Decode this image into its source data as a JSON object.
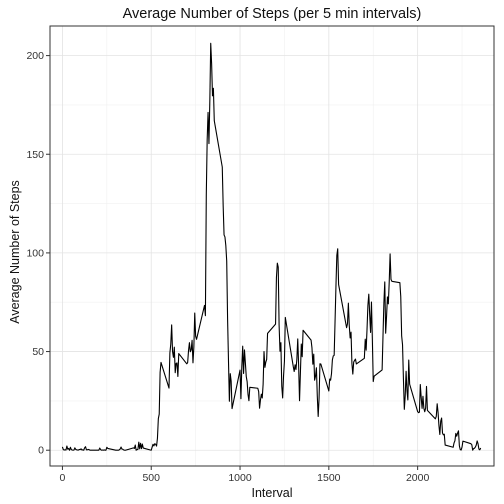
{
  "chart_data": {
    "type": "line",
    "title": "Average Number of Steps (per 5 min intervals)",
    "xlabel": "Interval",
    "ylabel": "Average Number of Steps",
    "xlim": [
      -70,
      2430
    ],
    "ylim": [
      -8,
      215
    ],
    "xticks": [
      0,
      500,
      1000,
      1500,
      2000
    ],
    "yticks": [
      0,
      50,
      100,
      150,
      200
    ],
    "x_minor_ticks": [
      250,
      750,
      1250,
      1750,
      2250
    ],
    "y_minor_ticks": [
      25,
      75,
      125,
      175
    ],
    "grid": true,
    "line_color": "#000000",
    "series": [
      {
        "points": [
          [
            0,
            1.7
          ],
          [
            5,
            0.3
          ],
          [
            10,
            0.1
          ],
          [
            15,
            0.2
          ],
          [
            20,
            0.1
          ],
          [
            25,
            2.1
          ],
          [
            30,
            0.5
          ],
          [
            35,
            0.9
          ],
          [
            40,
            0
          ],
          [
            45,
            1.5
          ],
          [
            50,
            0.3
          ],
          [
            55,
            0.1
          ],
          [
            60,
            0
          ],
          [
            65,
            0.1
          ],
          [
            70,
            1.2
          ],
          [
            75,
            0.4
          ],
          [
            80,
            0.2
          ],
          [
            85,
            0.1
          ],
          [
            90,
            0.1
          ],
          [
            95,
            0.4
          ],
          [
            100,
            0.3
          ],
          [
            105,
            0.7
          ],
          [
            110,
            0.1
          ],
          [
            115,
            0.2
          ],
          [
            120,
            0
          ],
          [
            125,
            1.2
          ],
          [
            130,
            1.8
          ],
          [
            135,
            0.2
          ],
          [
            140,
            0.2
          ],
          [
            145,
            0.4
          ],
          [
            150,
            0.3
          ],
          [
            155,
            0
          ],
          [
            200,
            0
          ],
          [
            205,
            0
          ],
          [
            210,
            1.1
          ],
          [
            215,
            0.3
          ],
          [
            220,
            0
          ],
          [
            225,
            0.1
          ],
          [
            230,
            0
          ],
          [
            235,
            0.2
          ],
          [
            240,
            0
          ],
          [
            245,
            0
          ],
          [
            250,
            1.5
          ],
          [
            255,
            0.9
          ],
          [
            300,
            0
          ],
          [
            305,
            0
          ],
          [
            310,
            0
          ],
          [
            315,
            0
          ],
          [
            320,
            0.2
          ],
          [
            325,
            0.6
          ],
          [
            330,
            1.6
          ],
          [
            335,
            0.6
          ],
          [
            340,
            0.5
          ],
          [
            345,
            0.1
          ],
          [
            350,
            0
          ],
          [
            355,
            0
          ],
          [
            400,
            1.2
          ],
          [
            405,
            0.9
          ],
          [
            410,
            2.6
          ],
          [
            415,
            0
          ],
          [
            420,
            0.3
          ],
          [
            425,
            0.4
          ],
          [
            430,
            4.1
          ],
          [
            435,
            0.7
          ],
          [
            440,
            3.5
          ],
          [
            445,
            0.8
          ],
          [
            450,
            3.1
          ],
          [
            455,
            1.1
          ],
          [
            500,
            0
          ],
          [
            505,
            1.5
          ],
          [
            510,
            3
          ],
          [
            515,
            2.2
          ],
          [
            520,
            3.3
          ],
          [
            525,
            3
          ],
          [
            530,
            2.1
          ],
          [
            535,
            6.1
          ],
          [
            540,
            16
          ],
          [
            545,
            18.3
          ],
          [
            550,
            39.5
          ],
          [
            555,
            44.5
          ],
          [
            600,
            31.5
          ],
          [
            605,
            49.3
          ],
          [
            610,
            53.8
          ],
          [
            615,
            63.5
          ],
          [
            620,
            50
          ],
          [
            625,
            47.1
          ],
          [
            630,
            52.2
          ],
          [
            635,
            39.3
          ],
          [
            640,
            44
          ],
          [
            645,
            44.2
          ],
          [
            650,
            37.4
          ],
          [
            655,
            49.0
          ],
          [
            700,
            43.8
          ],
          [
            705,
            44.4
          ],
          [
            710,
            50.5
          ],
          [
            715,
            54.5
          ],
          [
            720,
            49.9
          ],
          [
            725,
            50.9
          ],
          [
            730,
            55.7
          ],
          [
            735,
            44.3
          ],
          [
            740,
            52.3
          ],
          [
            745,
            69.5
          ],
          [
            750,
            57.8
          ],
          [
            755,
            56.2
          ],
          [
            800,
            73.4
          ],
          [
            805,
            68.2
          ],
          [
            810,
            129.4
          ],
          [
            815,
            157.5
          ],
          [
            820,
            171.2
          ],
          [
            825,
            155.4
          ],
          [
            830,
            177.3
          ],
          [
            835,
            206.2
          ],
          [
            840,
            195.9
          ],
          [
            845,
            179.6
          ],
          [
            850,
            183.4
          ],
          [
            855,
            167.0
          ],
          [
            900,
            143.5
          ],
          [
            905,
            124.0
          ],
          [
            910,
            109.1
          ],
          [
            915,
            108.1
          ],
          [
            920,
            103.7
          ],
          [
            925,
            95.9
          ],
          [
            930,
            66.2
          ],
          [
            935,
            45.2
          ],
          [
            940,
            24.8
          ],
          [
            945,
            38.8
          ],
          [
            950,
            35.0
          ],
          [
            955,
            21.1
          ],
          [
            1000,
            40.6
          ],
          [
            1005,
            26.1
          ],
          [
            1010,
            42.4
          ],
          [
            1015,
            52.7
          ],
          [
            1020,
            38.9
          ],
          [
            1025,
            50.8
          ],
          [
            1030,
            44.3
          ],
          [
            1035,
            37.4
          ],
          [
            1040,
            34.7
          ],
          [
            1045,
            28.3
          ],
          [
            1050,
            25.1
          ],
          [
            1055,
            31.9
          ],
          [
            1100,
            31.4
          ],
          [
            1105,
            29.7
          ],
          [
            1110,
            21.3
          ],
          [
            1115,
            25.5
          ],
          [
            1120,
            28.4
          ],
          [
            1125,
            26.5
          ],
          [
            1130,
            33.4
          ],
          [
            1135,
            50.0
          ],
          [
            1140,
            42.0
          ],
          [
            1145,
            44.6
          ],
          [
            1150,
            46.0
          ],
          [
            1155,
            59.2
          ],
          [
            1200,
            63.9
          ],
          [
            1205,
            87.6
          ],
          [
            1210,
            94.8
          ],
          [
            1215,
            92.8
          ],
          [
            1220,
            63.4
          ],
          [
            1225,
            50.2
          ],
          [
            1230,
            54.5
          ],
          [
            1235,
            32.4
          ],
          [
            1240,
            26.5
          ],
          [
            1245,
            37.7
          ],
          [
            1250,
            45.1
          ],
          [
            1255,
            67.3
          ],
          [
            1300,
            42.3
          ],
          [
            1305,
            39.9
          ],
          [
            1310,
            43.3
          ],
          [
            1315,
            40.9
          ],
          [
            1320,
            46.2
          ],
          [
            1325,
            56.4
          ],
          [
            1330,
            42.8
          ],
          [
            1335,
            25.1
          ],
          [
            1340,
            39.5
          ],
          [
            1345,
            53.8
          ],
          [
            1350,
            47.4
          ],
          [
            1355,
            60.8
          ],
          [
            1400,
            55.8
          ],
          [
            1405,
            51.9
          ],
          [
            1410,
            43.6
          ],
          [
            1415,
            48.7
          ],
          [
            1420,
            35.5
          ],
          [
            1425,
            37.5
          ],
          [
            1430,
            41.8
          ],
          [
            1435,
            27.5
          ],
          [
            1440,
            17.1
          ],
          [
            1445,
            26.2
          ],
          [
            1450,
            43.8
          ],
          [
            1455,
            43.7
          ],
          [
            1500,
            30.0
          ],
          [
            1505,
            36.1
          ],
          [
            1510,
            35.5
          ],
          [
            1515,
            38.8
          ],
          [
            1520,
            45.8
          ],
          [
            1525,
            47.8
          ],
          [
            1530,
            48.1
          ],
          [
            1535,
            65.3
          ],
          [
            1540,
            82.9
          ],
          [
            1545,
            98.7
          ],
          [
            1550,
            102.1
          ],
          [
            1555,
            84.0
          ],
          [
            1600,
            62.1
          ],
          [
            1605,
            64.1
          ],
          [
            1610,
            74.5
          ],
          [
            1615,
            63.2
          ],
          [
            1620,
            56.9
          ],
          [
            1625,
            59.8
          ],
          [
            1630,
            43.9
          ],
          [
            1635,
            38.6
          ],
          [
            1640,
            44.7
          ],
          [
            1645,
            45.5
          ],
          [
            1650,
            46.2
          ],
          [
            1655,
            43.7
          ],
          [
            1700,
            46.6
          ],
          [
            1705,
            56.3
          ],
          [
            1710,
            50.7
          ],
          [
            1715,
            61.2
          ],
          [
            1720,
            73.4
          ],
          [
            1725,
            79.1
          ],
          [
            1730,
            68.9
          ],
          [
            1735,
            59.7
          ],
          [
            1740,
            75.1
          ],
          [
            1745,
            56.5
          ],
          [
            1750,
            34.8
          ],
          [
            1755,
            37.5
          ],
          [
            1800,
            40.7
          ],
          [
            1805,
            58.0
          ],
          [
            1810,
            74.7
          ],
          [
            1815,
            85.3
          ],
          [
            1820,
            59.3
          ],
          [
            1825,
            67.8
          ],
          [
            1830,
            77.7
          ],
          [
            1835,
            74.2
          ],
          [
            1840,
            85.3
          ],
          [
            1845,
            99.5
          ],
          [
            1850,
            86.6
          ],
          [
            1855,
            85.6
          ],
          [
            1900,
            84.9
          ],
          [
            1905,
            77.8
          ],
          [
            1910,
            58.0
          ],
          [
            1915,
            53.4
          ],
          [
            1920,
            36.3
          ],
          [
            1925,
            20.7
          ],
          [
            1930,
            27.4
          ],
          [
            1935,
            40.0
          ],
          [
            1940,
            30.2
          ],
          [
            1945,
            25.5
          ],
          [
            1950,
            45.7
          ],
          [
            1955,
            33.5
          ],
          [
            2000,
            19.6
          ],
          [
            2005,
            19.0
          ],
          [
            2010,
            19.3
          ],
          [
            2015,
            33.3
          ],
          [
            2020,
            26.8
          ],
          [
            2025,
            21.2
          ],
          [
            2030,
            27.3
          ],
          [
            2035,
            21.3
          ],
          [
            2040,
            19.5
          ],
          [
            2045,
            21.3
          ],
          [
            2050,
            32.3
          ],
          [
            2055,
            20.2
          ],
          [
            2100,
            15.9
          ],
          [
            2105,
            17.2
          ],
          [
            2110,
            23.5
          ],
          [
            2115,
            19.2
          ],
          [
            2120,
            12.5
          ],
          [
            2125,
            8.0
          ],
          [
            2130,
            14.7
          ],
          [
            2135,
            16.3
          ],
          [
            2140,
            8.7
          ],
          [
            2145,
            7.8
          ],
          [
            2150,
            8.1
          ],
          [
            2155,
            2.6
          ],
          [
            2200,
            1.5
          ],
          [
            2205,
            3.7
          ],
          [
            2210,
            4.8
          ],
          [
            2215,
            8.5
          ],
          [
            2220,
            7.1
          ],
          [
            2225,
            8.7
          ],
          [
            2230,
            9.8
          ],
          [
            2235,
            2.2
          ],
          [
            2240,
            0.3
          ],
          [
            2245,
            0.1
          ],
          [
            2250,
            1.6
          ],
          [
            2255,
            4.6
          ],
          [
            2300,
            3.3
          ],
          [
            2305,
            2.8
          ],
          [
            2310,
            0
          ],
          [
            2315,
            0.8
          ],
          [
            2320,
            1.0
          ],
          [
            2325,
            1.6
          ],
          [
            2330,
            2.6
          ],
          [
            2335,
            4.7
          ],
          [
            2340,
            3.3
          ],
          [
            2345,
            0.6
          ],
          [
            2350,
            0.2
          ],
          [
            2355,
            1.1
          ]
        ]
      }
    ]
  }
}
